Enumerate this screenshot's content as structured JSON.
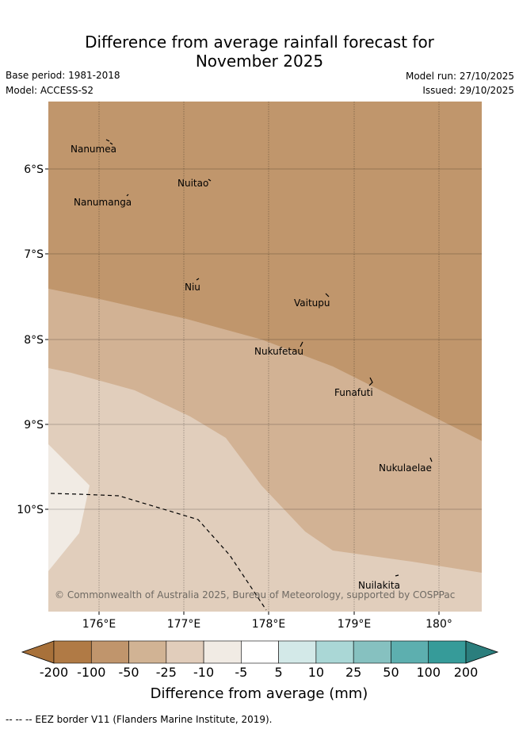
{
  "title_line1": "Difference from average rainfall forecast for",
  "title_line2": "November 2025",
  "header": {
    "base_period": "Base period: 1981-2018",
    "model": "Model: ACCESS-S2",
    "model_run": "Model run: 27/10/2025",
    "issued": "Issued: 29/10/2025"
  },
  "map": {
    "lon_ticks": [
      "176°E",
      "177°E",
      "178°E",
      "179°E",
      "180°"
    ],
    "lat_ticks": [
      "6°S",
      "7°S",
      "8°S",
      "9°S",
      "10°S"
    ],
    "places": [
      "Nanumea",
      "Nuitao",
      "Nanumanga",
      "Niu",
      "Vaitupu",
      "Nukufetau",
      "Funafuti",
      "Nukulaelae",
      "Nuilakita"
    ],
    "copyright": "© Commonwealth of Australia 2025, Bureau of Meteorology, supported by COSPPac"
  },
  "colorbar": {
    "title": "Difference from average (mm)",
    "ticks": [
      "-200",
      "-100",
      "-50",
      "-25",
      "-10",
      "-5",
      "5",
      "10",
      "25",
      "50",
      "100",
      "200"
    ],
    "colors": [
      "#a8713a",
      "#b07a45",
      "#c0956c",
      "#d1b394",
      "#e1cdbb",
      "#f1ebe4",
      "#ffffff",
      "#d3e9e8",
      "#aad7d6",
      "#86c1c0",
      "#5dafaf",
      "#369b99",
      "#2b7e7d"
    ]
  },
  "footer": "-- -- -- EEZ border V11 (Flanders Marine Institute, 2019)."
}
